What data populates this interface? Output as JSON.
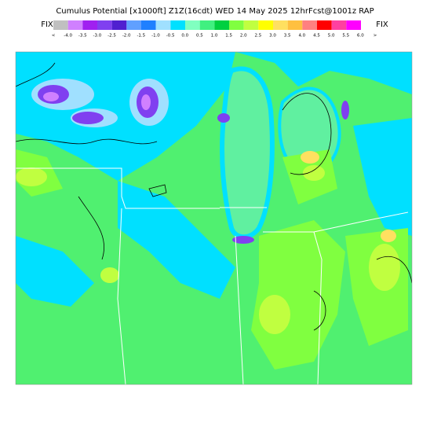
{
  "title": "Cumulus Potential [x1000ft] Z1Z(16cdt) WED 14 May 2025 12hrFcst@1001z RAP",
  "fix_left": "FIX",
  "fix_right": "FIX",
  "legend": {
    "labels": [
      "<",
      "-4.0",
      "-3.5",
      "-3.0",
      "-2.5",
      "-2.0",
      "-1.5",
      "-1.0",
      "-0.5",
      "0.0",
      "0.5",
      "1.0",
      "1.5",
      "2.0",
      "2.5",
      "3.0",
      "3.5",
      "4.0",
      "4.5",
      "5.0",
      "5.5",
      "6.0",
      ">"
    ],
    "colors": [
      "#c0c0c0",
      "#d080ff",
      "#a020f0",
      "#8040f0",
      "#5020d0",
      "#60a0ff",
      "#2080ff",
      "#a0e0ff",
      "#00e0ff",
      "#80ffc0",
      "#40f080",
      "#00d040",
      "#80ff40",
      "#c0ff40",
      "#ffff00",
      "#ffe060",
      "#ffc040",
      "#ff8080",
      "#ff0000",
      "#ff40a0",
      "#ff00ff"
    ]
  }
}
